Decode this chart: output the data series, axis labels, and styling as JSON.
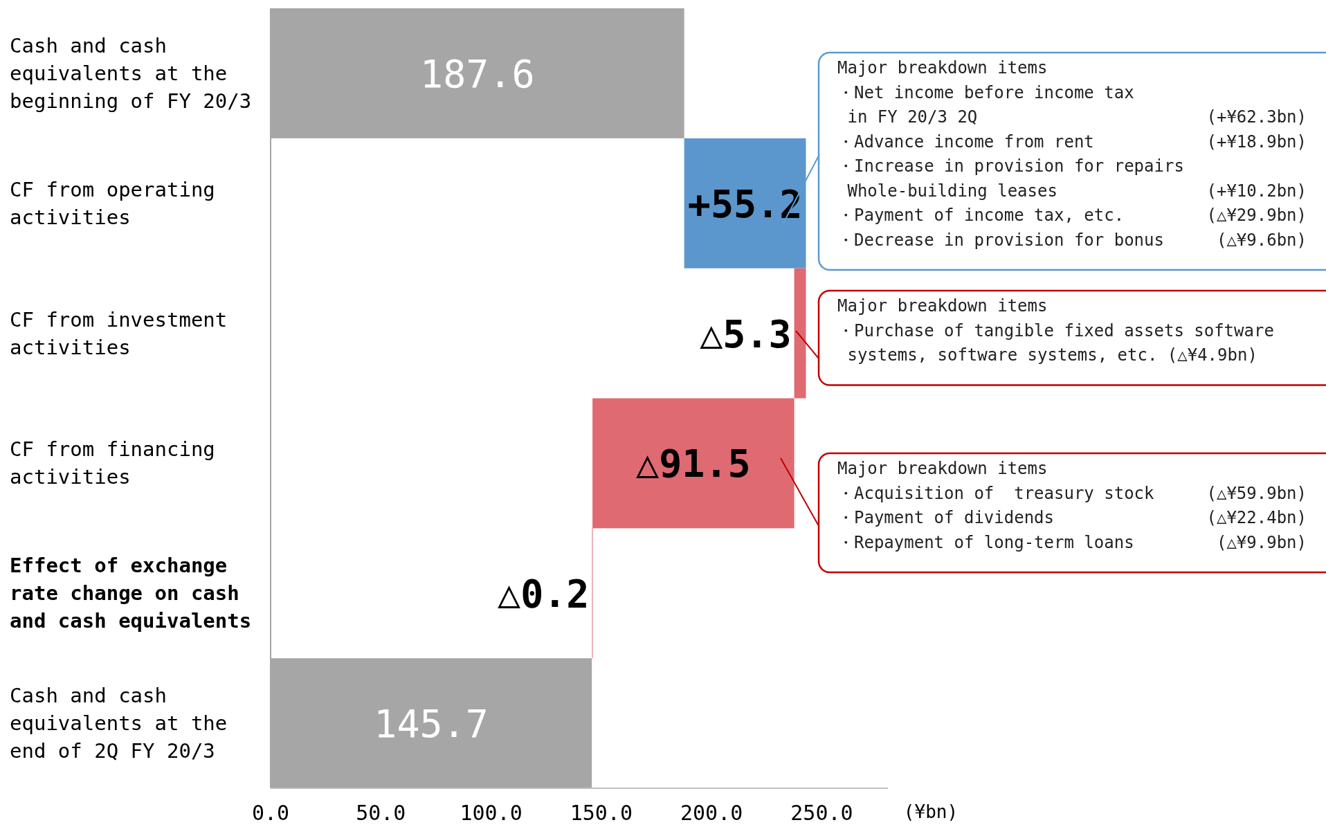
{
  "chart_data": {
    "type": "bar",
    "orientation": "horizontal",
    "categories": [
      "Cash and cash equivalents at the beginning of FY 20/3",
      "CF from operating activities",
      "CF from investment activities",
      "CF from financing activities",
      "Effect of exchange rate change on cash and cash equivalents",
      "Cash and cash equivalents at the end of 2Q FY 20/3"
    ],
    "values": [
      187.6,
      55.2,
      -5.3,
      -91.5,
      -0.2,
      145.7
    ],
    "base": [
      0,
      187.6,
      242.8,
      237.5,
      146.0,
      0
    ],
    "colors": [
      "#a6a6a6",
      "#5b97cc",
      "#e06a72",
      "#e06a72",
      "#e06a72",
      "#a6a6a6"
    ],
    "value_labels": [
      "187.6",
      "+55.2",
      "△5.3",
      "△91.5",
      "△0.2",
      "145.7"
    ],
    "xlim": [
      0,
      280
    ],
    "xticks": [
      {
        "value": 0,
        "label": "0.0"
      },
      {
        "value": 50,
        "label": "50.0"
      },
      {
        "value": 100,
        "label": "100.0"
      },
      {
        "value": 150,
        "label": "150.0"
      },
      {
        "value": 200,
        "label": "200.0"
      },
      {
        "value": 250,
        "label": "250.0"
      }
    ],
    "xlabel": "(¥bn)",
    "annotations": [
      "Major breakdown items\n・Net income before income tax\n in FY 20/3 2Q\t(+¥62.3bn)\n・Advance income from rent\t(+¥18.9bn)\n・Increase in provision for repairs\n Whole-building leases\t(+¥10.2bn)\n・Payment of income tax, etc.\t(△¥29.9bn)\n・Decrease in provision for bonus\t(△¥9.6bn)",
      "Major breakdown items\n・Purchase of tangible fixed assets software\n systems, software systems, etc. (△¥4.9bn)",
      "Major breakdown items\n・Acquisition of  treasury stock\t(△¥59.9bn)\n・Payment of dividends\t(△¥22.4bn)\n・Repayment of long-term loans\t(△¥9.9bn)"
    ]
  }
}
